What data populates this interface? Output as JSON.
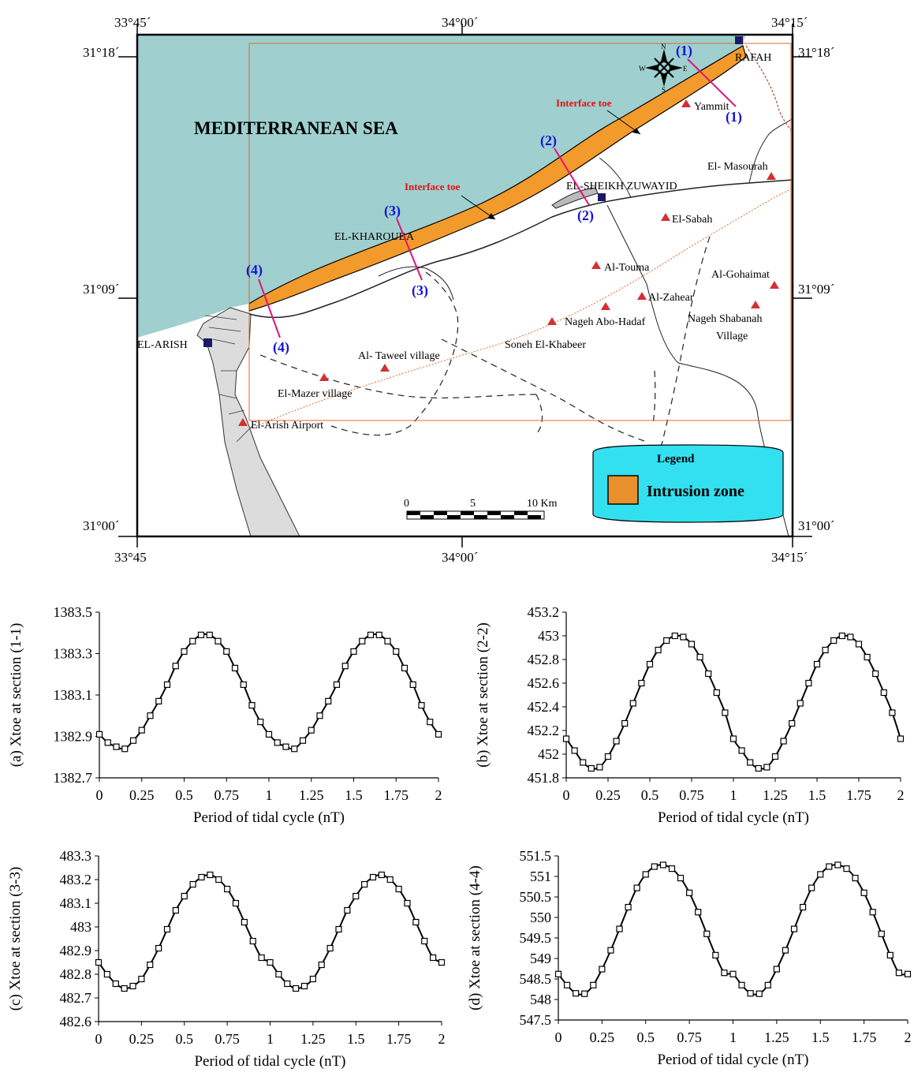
{
  "map": {
    "sea_label": "MEDITERRANEAN SEA",
    "coords": {
      "top": [
        "33°45´",
        "34°00´",
        "34°15´"
      ],
      "bottom": [
        "33°45",
        "34°00´",
        "34°15´"
      ],
      "left": [
        "31°18´",
        "31°09´",
        "31°00´"
      ],
      "right": [
        "31°18´",
        "31°09´",
        "31°00´"
      ]
    },
    "interface_label": "Interface toe",
    "towns": [
      "RAFAH",
      "EL-SHEIKH ZUWAYID",
      "EL-KHAROUBA",
      "EL-ARISH"
    ],
    "villages": [
      "Yammit",
      "El- Masourah",
      "El-Sabah",
      "Al-Touma",
      "Al-Gohaimat",
      "Al-Zahear",
      "Nageh Abo-Hadaf",
      "Nageh Shabanah",
      "Village",
      "Soneh El-Khabeer",
      "Al- Taweel village",
      "El-Mazer village",
      "El-Arish Airport"
    ],
    "sections": [
      "(1)",
      "(2)",
      "(3)",
      "(4)"
    ],
    "compass": {
      "n": "N",
      "s": "S",
      "e": "E",
      "w": "W"
    },
    "scale": {
      "labels": [
        "0",
        "5",
        "10 Km"
      ]
    },
    "legend": {
      "title": "Legend",
      "item": "Intrusion zone",
      "color": "#e8902c"
    },
    "colors": {
      "sea": "#9fcfcf",
      "intrusion": "#f39a2c",
      "section_line": "#e0147a",
      "section_label": "#1414d6",
      "village_marker": "#d43030",
      "interface_label": "#e01414",
      "legend_box": "#33e0f0"
    }
  },
  "chart_data": [
    {
      "type": "line",
      "ylabel": "(a) Xtoe at section  (1-1)",
      "xlabel": "Period of tidal cycle  (nT)",
      "xlim": [
        0,
        2
      ],
      "ylim": [
        1382.7,
        1383.5
      ],
      "xticks": [
        "0",
        "0.25",
        "0.5",
        "0.75",
        "1",
        "1.25",
        "1.5",
        "1.75",
        "2"
      ],
      "yticks": [
        "1383.5",
        "1383.3",
        "1383.1",
        "1382.9",
        "1382.7"
      ],
      "x": [
        0,
        0.05,
        0.1,
        0.15,
        0.2,
        0.25,
        0.3,
        0.35,
        0.4,
        0.45,
        0.5,
        0.55,
        0.6,
        0.65,
        0.7,
        0.75,
        0.8,
        0.85,
        0.9,
        0.95,
        1,
        1.05,
        1.1,
        1.15,
        1.2,
        1.25,
        1.3,
        1.35,
        1.4,
        1.45,
        1.5,
        1.55,
        1.6,
        1.65,
        1.7,
        1.75,
        1.8,
        1.85,
        1.9,
        1.95,
        2
      ],
      "y": [
        1382.91,
        1382.87,
        1382.85,
        1382.84,
        1382.88,
        1382.93,
        1383.0,
        1383.07,
        1383.15,
        1383.24,
        1383.31,
        1383.36,
        1383.39,
        1383.39,
        1383.36,
        1383.31,
        1383.23,
        1383.15,
        1383.05,
        1382.97,
        1382.91,
        1382.87,
        1382.85,
        1382.84,
        1382.88,
        1382.93,
        1383.0,
        1383.07,
        1383.15,
        1383.24,
        1383.31,
        1383.36,
        1383.39,
        1383.39,
        1383.36,
        1383.31,
        1383.23,
        1383.15,
        1383.05,
        1382.97,
        1382.91
      ]
    },
    {
      "type": "line",
      "ylabel": "(b) Xtoe at section  (2-2)",
      "xlabel": "Period of tidal cycle  (nT)",
      "xlim": [
        0,
        2
      ],
      "ylim": [
        451.8,
        453.2
      ],
      "xticks": [
        "0",
        "0.25",
        "0.5",
        "0.75",
        "1",
        "1.25",
        "1.5",
        "1.75",
        "2"
      ],
      "yticks": [
        "453.2",
        "453",
        "452.8",
        "452.6",
        "452.4",
        "452.2",
        "452",
        "451.8"
      ],
      "x": [
        0,
        0.05,
        0.1,
        0.15,
        0.2,
        0.25,
        0.3,
        0.35,
        0.4,
        0.45,
        0.5,
        0.55,
        0.6,
        0.65,
        0.7,
        0.75,
        0.8,
        0.85,
        0.9,
        0.95,
        1,
        1.05,
        1.1,
        1.15,
        1.2,
        1.25,
        1.3,
        1.35,
        1.4,
        1.45,
        1.5,
        1.55,
        1.6,
        1.65,
        1.7,
        1.75,
        1.8,
        1.85,
        1.9,
        1.95,
        2
      ],
      "y": [
        452.13,
        452.03,
        451.93,
        451.88,
        451.89,
        451.98,
        452.11,
        452.26,
        452.43,
        452.6,
        452.76,
        452.88,
        452.96,
        453.0,
        452.99,
        452.93,
        452.82,
        452.68,
        452.52,
        452.35,
        452.13,
        452.03,
        451.93,
        451.88,
        451.89,
        451.98,
        452.11,
        452.26,
        452.43,
        452.6,
        452.76,
        452.88,
        452.96,
        453.0,
        452.99,
        452.93,
        452.82,
        452.68,
        452.52,
        452.35,
        452.13
      ]
    },
    {
      "type": "line",
      "ylabel": "(c) Xtoe at section  (3-3)",
      "xlabel": "Period of tidal cycle  (nT)",
      "xlim": [
        0,
        2
      ],
      "ylim": [
        482.6,
        483.3
      ],
      "xticks": [
        "0",
        "0.25",
        "0.5",
        "0.75",
        "1",
        "1.25",
        "1.5",
        "1.75",
        "2"
      ],
      "yticks": [
        "483.3",
        "483.2",
        "483.1",
        "483",
        "482.9",
        "482.8",
        "482.7",
        "482.6"
      ],
      "x": [
        0,
        0.05,
        0.1,
        0.15,
        0.2,
        0.25,
        0.3,
        0.35,
        0.4,
        0.45,
        0.5,
        0.55,
        0.6,
        0.65,
        0.7,
        0.75,
        0.8,
        0.85,
        0.9,
        0.95,
        1,
        1.05,
        1.1,
        1.15,
        1.2,
        1.25,
        1.3,
        1.35,
        1.4,
        1.45,
        1.5,
        1.55,
        1.6,
        1.65,
        1.7,
        1.75,
        1.8,
        1.85,
        1.9,
        1.95,
        2
      ],
      "y": [
        482.85,
        482.8,
        482.76,
        482.74,
        482.75,
        482.78,
        482.84,
        482.91,
        482.99,
        483.07,
        483.13,
        483.18,
        483.21,
        483.22,
        483.2,
        483.16,
        483.1,
        483.02,
        482.94,
        482.87,
        482.85,
        482.8,
        482.76,
        482.74,
        482.75,
        482.78,
        482.84,
        482.91,
        482.99,
        483.07,
        483.13,
        483.18,
        483.21,
        483.22,
        483.2,
        483.16,
        483.1,
        483.02,
        482.94,
        482.87,
        482.85
      ]
    },
    {
      "type": "line",
      "ylabel": "(d) Xtoe at section  (4-4)",
      "xlabel": "Period of tidal cycle  (nT)",
      "xlim": [
        0,
        2
      ],
      "ylim": [
        547.5,
        551.5
      ],
      "xticks": [
        "0",
        "0.25",
        "0.5",
        "0.75",
        "1",
        "1.25",
        "1.5",
        "1.75",
        "2"
      ],
      "yticks": [
        "551.5",
        "551",
        "550.5",
        "550",
        "549.5",
        "549",
        "548.5",
        "548",
        "547.5"
      ],
      "x": [
        0,
        0.05,
        0.1,
        0.15,
        0.2,
        0.25,
        0.3,
        0.35,
        0.4,
        0.45,
        0.5,
        0.55,
        0.6,
        0.65,
        0.7,
        0.75,
        0.8,
        0.85,
        0.9,
        0.95,
        1,
        1.05,
        1.1,
        1.15,
        1.2,
        1.25,
        1.3,
        1.35,
        1.4,
        1.45,
        1.5,
        1.55,
        1.6,
        1.65,
        1.7,
        1.75,
        1.8,
        1.85,
        1.9,
        1.95,
        2
      ],
      "y": [
        548.62,
        548.35,
        548.15,
        548.14,
        548.35,
        548.74,
        549.2,
        549.72,
        550.25,
        550.72,
        551.05,
        551.24,
        551.28,
        551.19,
        550.96,
        550.6,
        550.13,
        549.6,
        549.08,
        548.65,
        548.62,
        548.35,
        548.15,
        548.14,
        548.35,
        548.74,
        549.2,
        549.72,
        550.25,
        550.72,
        551.05,
        551.24,
        551.28,
        551.19,
        550.96,
        550.6,
        550.13,
        549.6,
        549.08,
        548.65,
        548.62
      ]
    }
  ]
}
